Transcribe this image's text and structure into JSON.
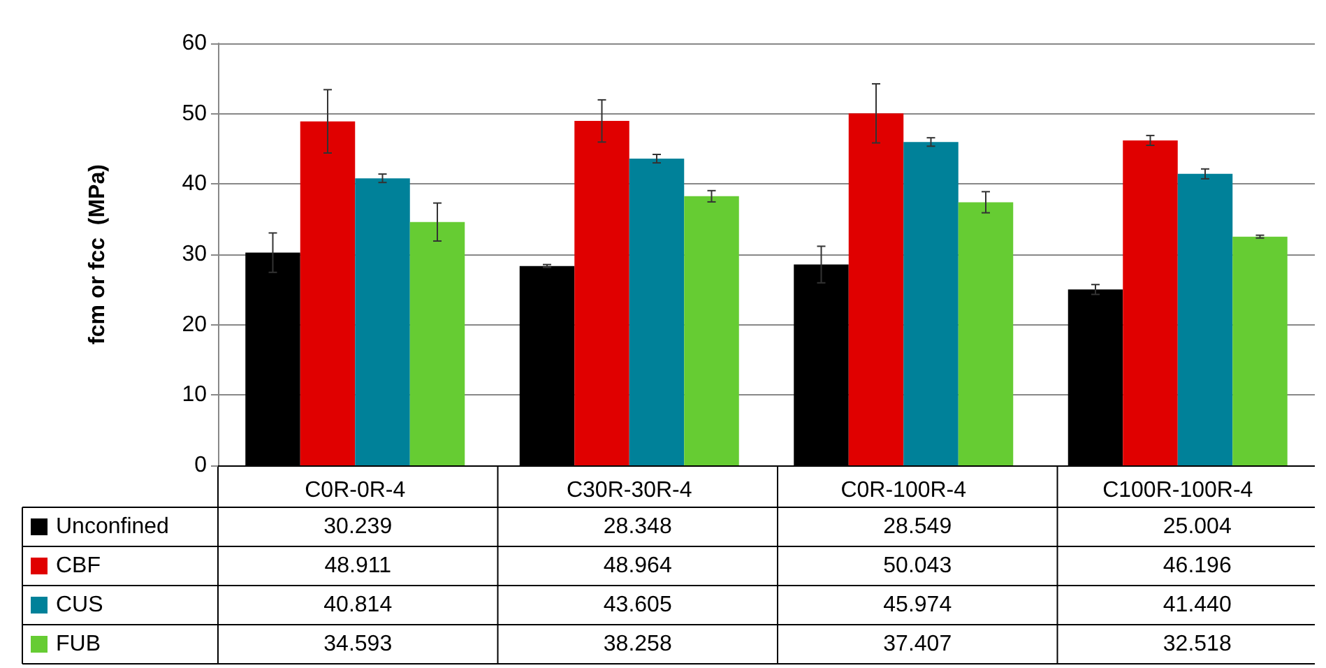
{
  "chart_data": {
    "type": "bar",
    "ylabel": "fcm or fcc  (MPa)",
    "categories": [
      "C0R-0R-4",
      "C30R-30R-4",
      "C0R-100R-4",
      "C100R-100R-4"
    ],
    "series": [
      {
        "name": "Unconfined",
        "color": "#000000",
        "values": [
          30.239,
          28.348,
          28.549,
          25.004
        ],
        "value_labels": [
          "30.239",
          "28.348",
          "28.549",
          "25.004"
        ],
        "errors": [
          2.8,
          0.2,
          2.6,
          0.7
        ]
      },
      {
        "name": "CBF",
        "color": "#e00000",
        "values": [
          48.911,
          48.964,
          50.043,
          46.196
        ],
        "value_labels": [
          "48.911",
          "48.964",
          "50.043",
          "46.196"
        ],
        "errors": [
          4.5,
          3.0,
          4.2,
          0.7
        ]
      },
      {
        "name": "CUS",
        "color": "#008199",
        "values": [
          40.814,
          43.605,
          45.974,
          41.44
        ],
        "value_labels": [
          "40.814",
          "43.605",
          "45.974",
          "41.440"
        ],
        "errors": [
          0.6,
          0.6,
          0.6,
          0.7
        ]
      },
      {
        "name": "FUB",
        "color": "#66cc33",
        "values": [
          34.593,
          38.258,
          37.407,
          32.518
        ],
        "value_labels": [
          "34.593",
          "38.258",
          "37.407",
          "32.518"
        ],
        "errors": [
          2.7,
          0.8,
          1.5,
          0.2
        ]
      }
    ],
    "ylim": [
      0,
      60
    ],
    "yticks": [
      0,
      10,
      20,
      30,
      40,
      50,
      60
    ],
    "grid": "y",
    "legend": "bottom"
  }
}
